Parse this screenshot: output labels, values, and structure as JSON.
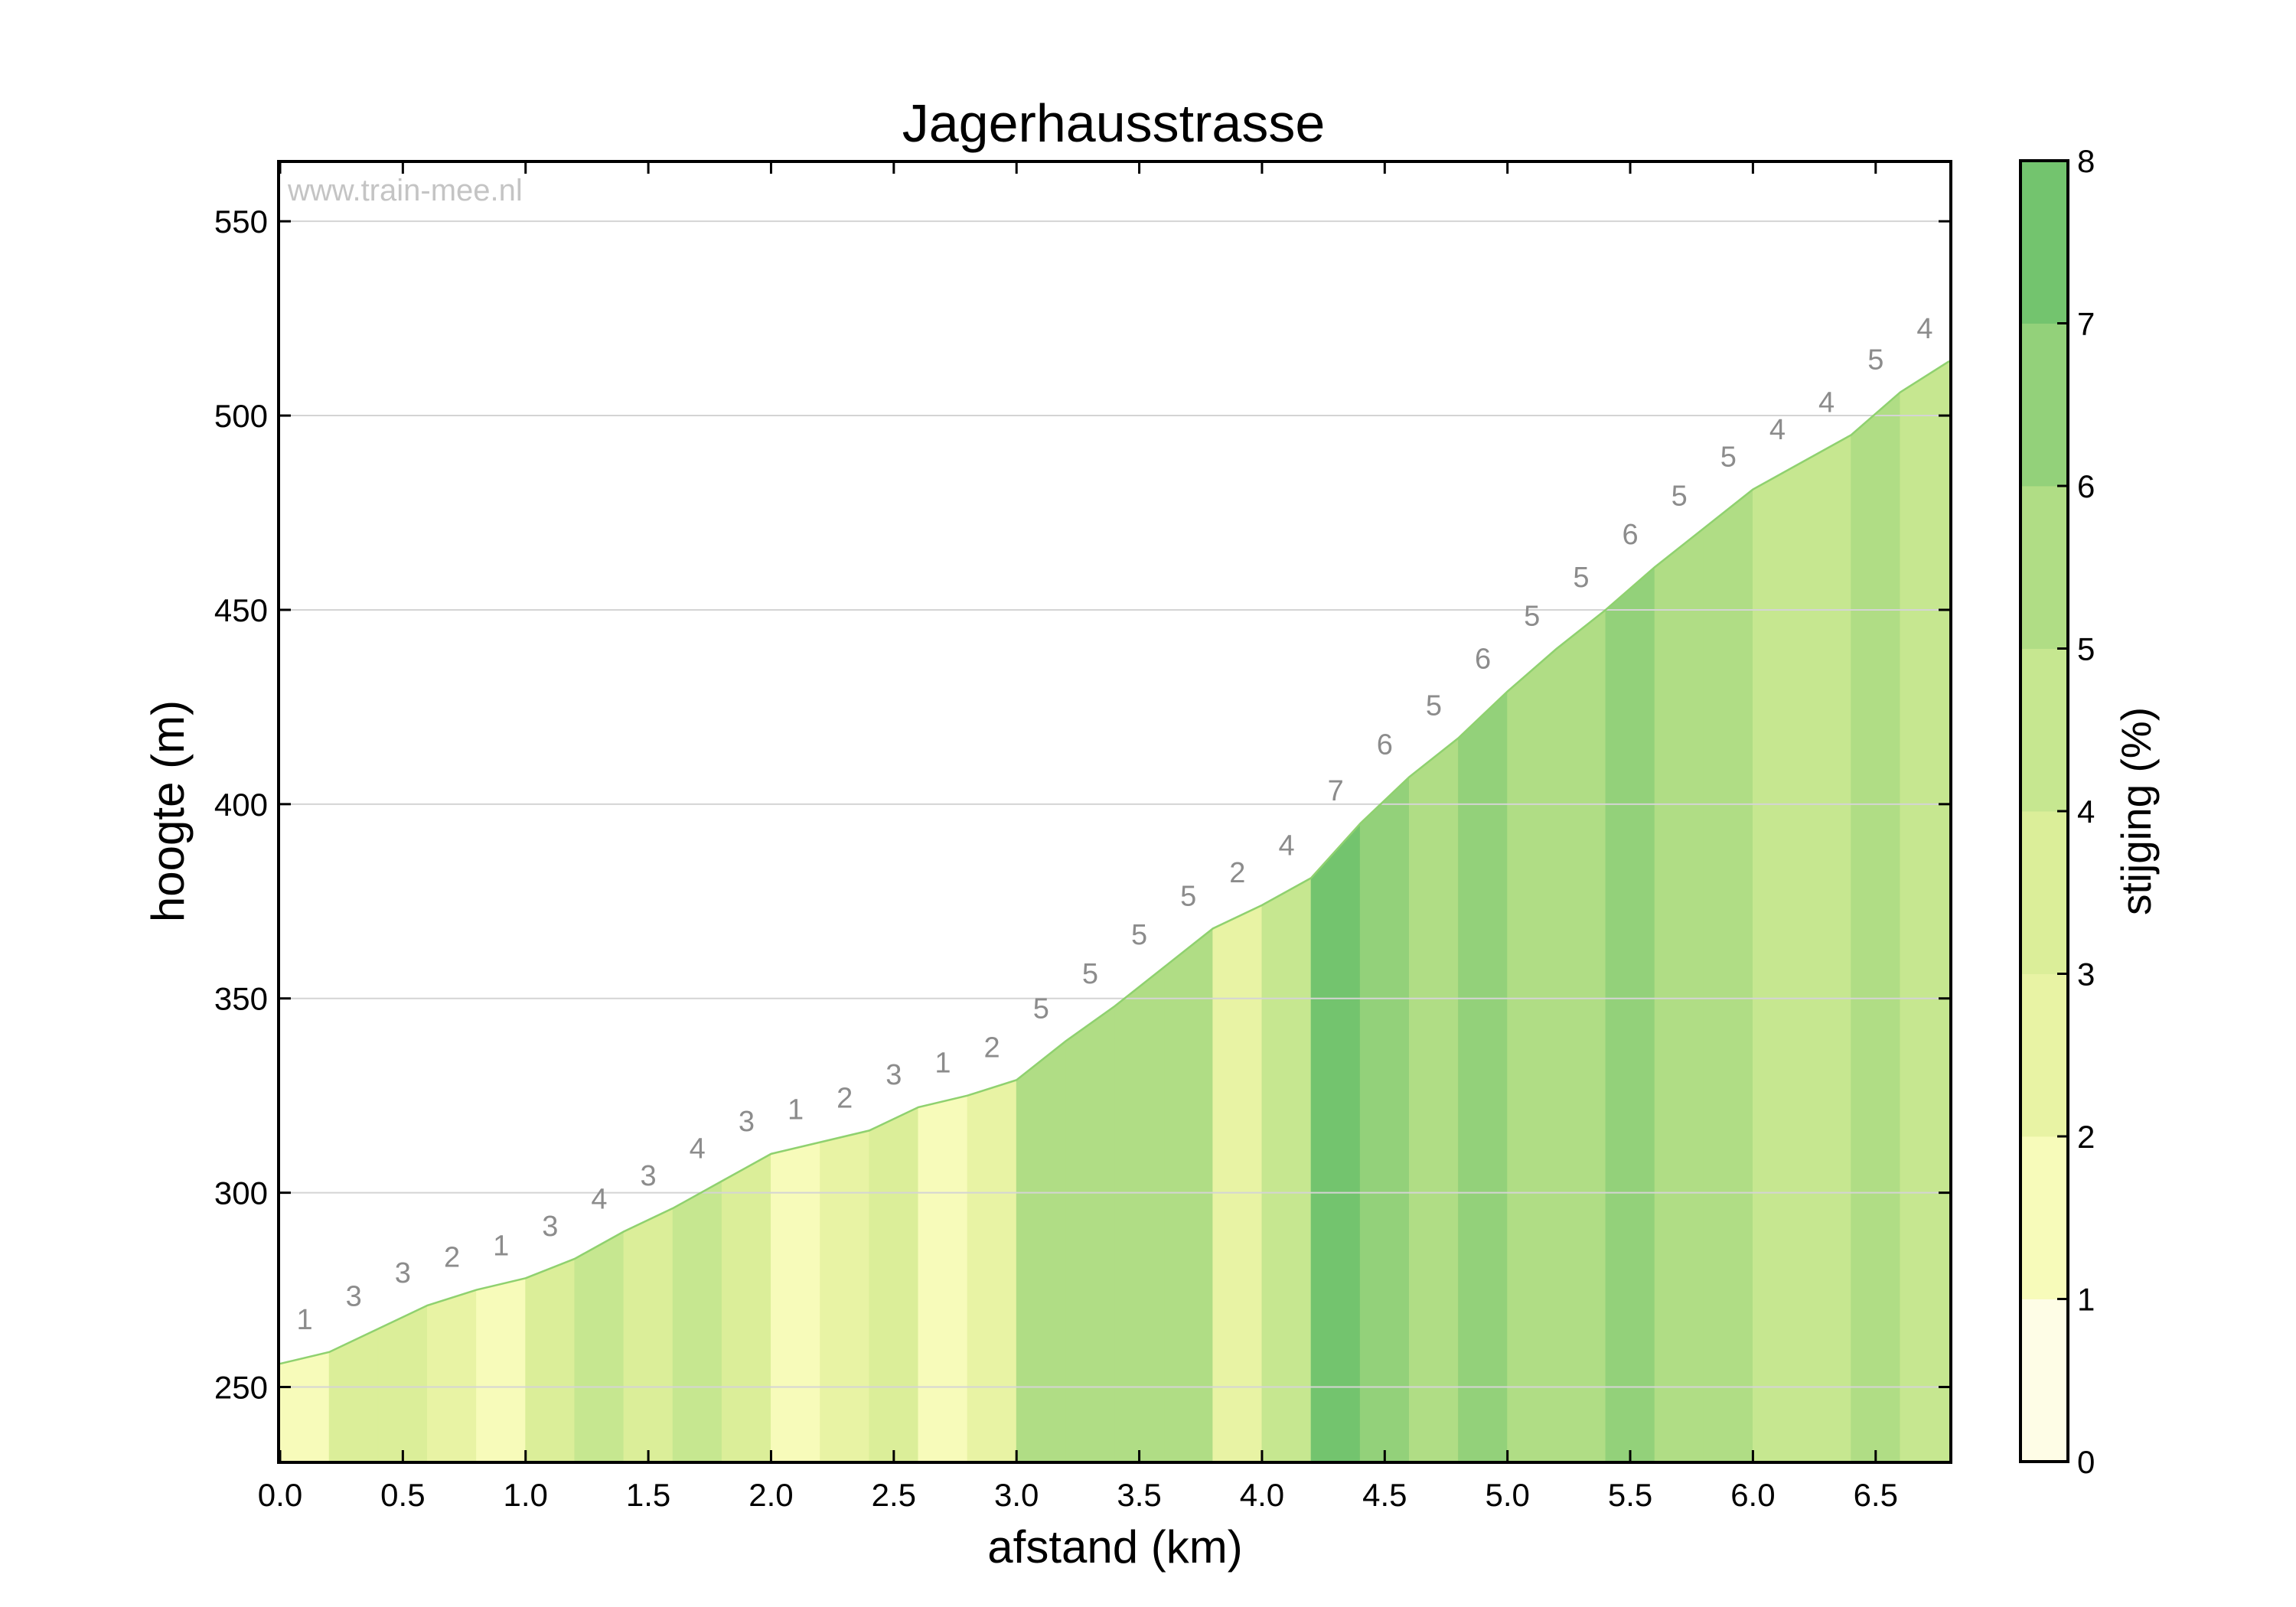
{
  "chart_data": {
    "type": "area",
    "title": "Jagerhausstrasse",
    "watermark": "www.train-mee.nl",
    "xlabel": "afstand (km)",
    "ylabel": "hoogte (m)",
    "colorbar_label": "stijging (%)",
    "xlim": [
      0,
      6.8
    ],
    "ylim": [
      231,
      565
    ],
    "xticks": [
      0.0,
      0.5,
      1.0,
      1.5,
      2.0,
      2.5,
      3.0,
      3.5,
      4.0,
      4.5,
      5.0,
      5.5,
      6.0,
      6.5
    ],
    "xtick_labels": [
      "0.0",
      "0.5",
      "1.0",
      "1.5",
      "2.0",
      "2.5",
      "3.0",
      "3.5",
      "4.0",
      "4.5",
      "5.0",
      "5.5",
      "6.0",
      "6.5"
    ],
    "yticks": [
      250,
      300,
      350,
      400,
      450,
      500,
      550
    ],
    "ytick_labels": [
      "250",
      "300",
      "350",
      "400",
      "450",
      "500",
      "550"
    ],
    "colorbar_ticks": [
      "0",
      "1",
      "2",
      "3",
      "4",
      "5",
      "6",
      "7",
      "8"
    ],
    "colorbar_range": [
      0,
      8
    ],
    "grid": "horizontal",
    "x": [
      0.0,
      0.2,
      0.4,
      0.6,
      0.8,
      1.0,
      1.2,
      1.4,
      1.6,
      1.8,
      2.0,
      2.2,
      2.4,
      2.6,
      2.8,
      3.0,
      3.2,
      3.4,
      3.6,
      3.8,
      4.0,
      4.2,
      4.4,
      4.6,
      4.8,
      5.0,
      5.2,
      5.4,
      5.6,
      5.8,
      6.0,
      6.2,
      6.4,
      6.6,
      6.8
    ],
    "elevation": [
      256,
      259,
      265,
      271,
      275,
      278,
      283,
      290,
      296,
      303,
      310,
      313,
      316,
      322,
      325,
      329,
      339,
      348,
      358,
      368,
      374,
      381,
      395,
      407,
      417,
      429,
      440,
      450,
      461,
      471,
      481,
      488,
      495,
      506,
      514
    ],
    "gradients": [
      1,
      3,
      3,
      2,
      1,
      3,
      4,
      3,
      4,
      3,
      1,
      2,
      3,
      1,
      2,
      5,
      5,
      5,
      5,
      2,
      4,
      7,
      6,
      5,
      6,
      5,
      5,
      6,
      5,
      5,
      4,
      4,
      5,
      4
    ],
    "gradient_labels": [
      "1",
      "3",
      "3",
      "2",
      "1",
      "3",
      "4",
      "3",
      "4",
      "3",
      "1",
      "2",
      "3",
      "1",
      "2",
      "5",
      "5",
      "5",
      "5",
      "2",
      "4",
      "7",
      "6",
      "5",
      "6",
      "5",
      "5",
      "6",
      "5",
      "5",
      "4",
      "4",
      "5",
      "4"
    ],
    "colors": {
      "0": "#fefde6",
      "1": "#f7fbba",
      "2": "#e8f3a4",
      "3": "#dbee99",
      "4": "#c6e790",
      "5": "#b0dd85",
      "6": "#93d17a",
      "7": "#73c46e",
      "line": "#8fd16f",
      "grid": "#d4d4d4",
      "label": "#8c8c8c",
      "watermark": "#c4c4c4"
    }
  }
}
